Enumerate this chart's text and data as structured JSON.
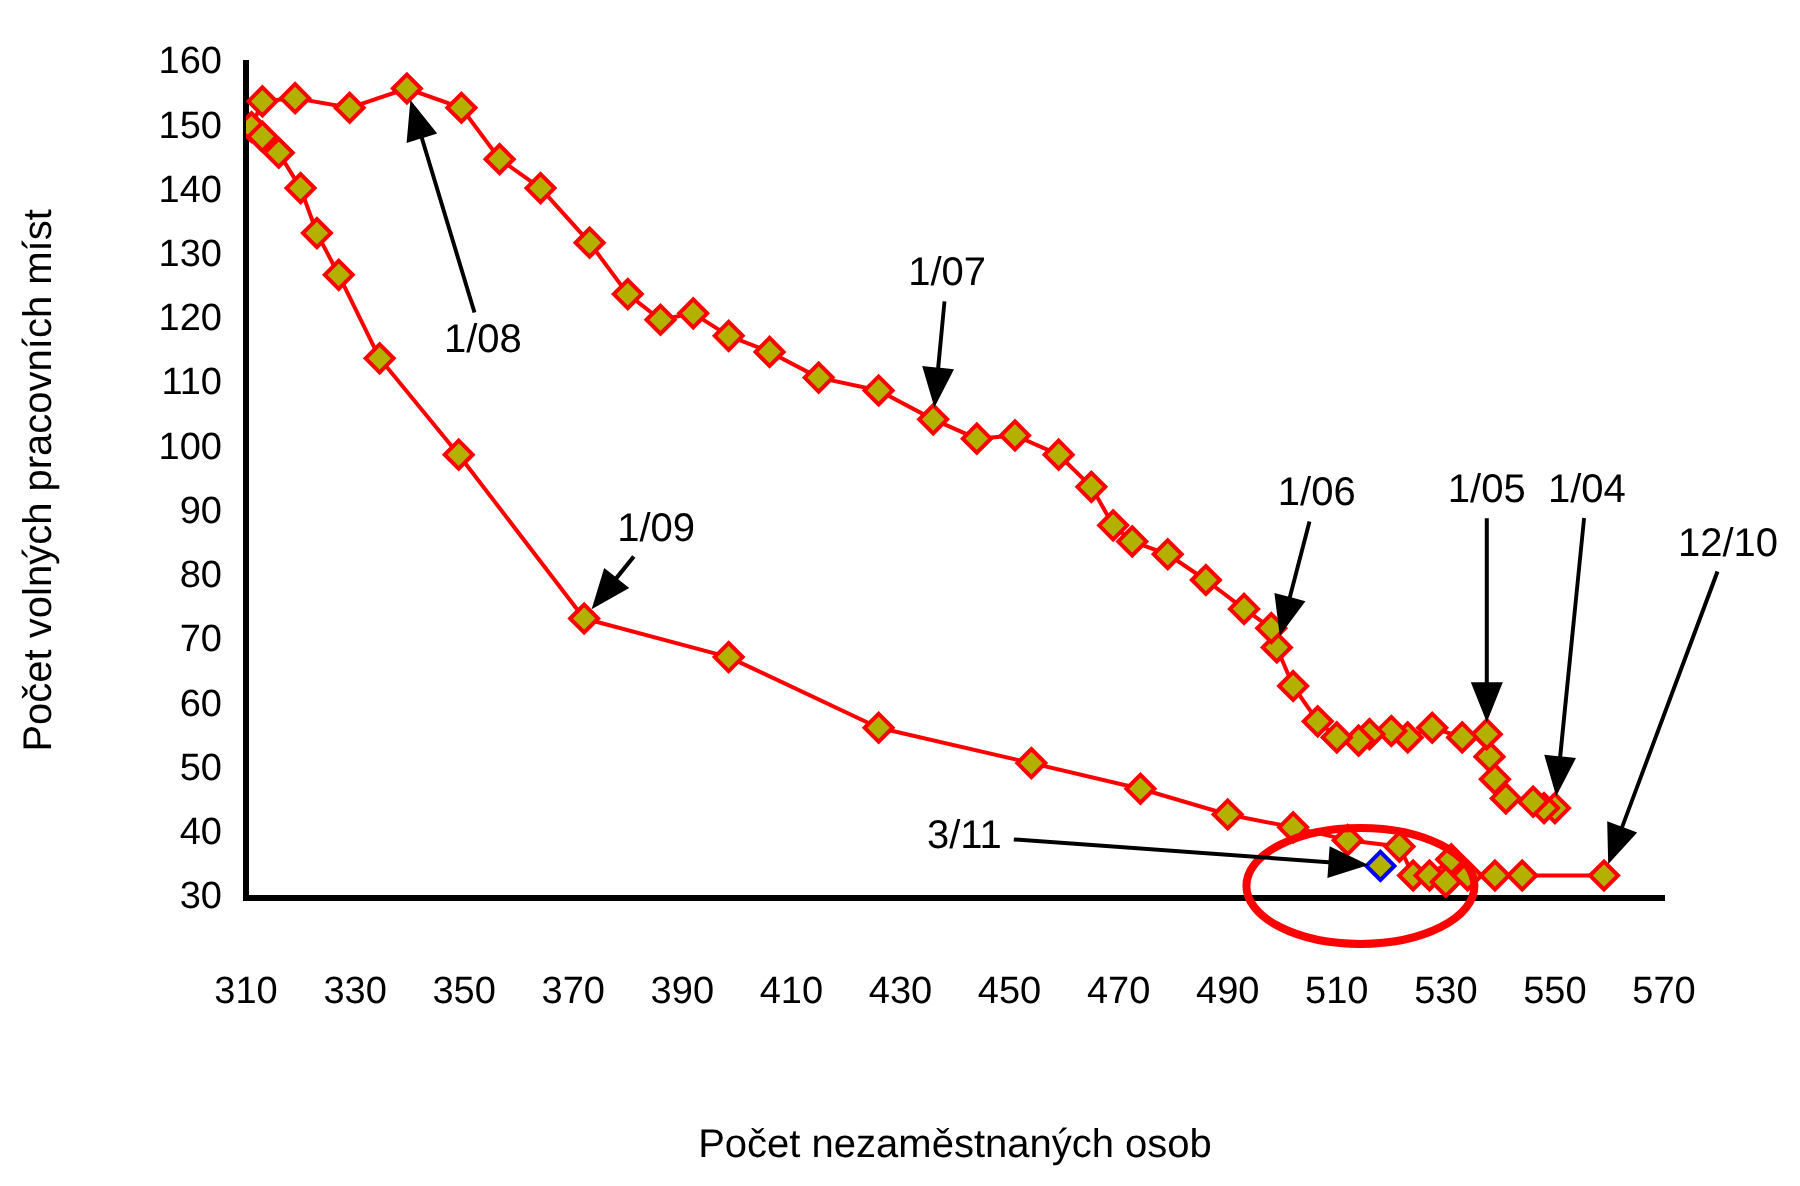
{
  "chart_data": {
    "type": "line",
    "xlabel": "Počet nezaměstnaných osob",
    "ylabel": "Počet volných pracovních míst",
    "xlim": [
      310,
      570
    ],
    "xticks": [
      310,
      330,
      350,
      370,
      390,
      410,
      430,
      450,
      470,
      490,
      510,
      530,
      550,
      570
    ],
    "ylim": [
      30,
      160
    ],
    "yticks": [
      30,
      40,
      50,
      60,
      70,
      80,
      90,
      100,
      110,
      120,
      130,
      140,
      150,
      160
    ],
    "grid": false,
    "legend": false,
    "marker": "diamond",
    "line_style": "solid",
    "series": [
      {
        "type": "line",
        "color": "#ff0000",
        "x": [
          550,
          548,
          546,
          541,
          539,
          538,
          537.5,
          533,
          527.5,
          523,
          520,
          516,
          514,
          510,
          506.5,
          502,
          499,
          498,
          493,
          486,
          479,
          472.5,
          469,
          465,
          459,
          451,
          444,
          436,
          426,
          415,
          406,
          398.5,
          392,
          386,
          380,
          373,
          364,
          356.5,
          349.5,
          339.5,
          329,
          319,
          313,
          311,
          313,
          316,
          320,
          323,
          327,
          334.5,
          349,
          372,
          398.5,
          426,
          454,
          474,
          490,
          502,
          512,
          521.5,
          524,
          527,
          531,
          530,
          534,
          539,
          544,
          559
        ],
        "values": [
          44,
          44,
          45,
          45.5,
          48.5,
          52,
          55.5,
          55,
          56.5,
          55,
          56,
          55.5,
          54.5,
          55,
          57.5,
          63,
          69,
          72,
          75,
          79.5,
          83.5,
          85.5,
          88,
          94,
          99,
          102,
          101.5,
          104.5,
          109,
          111,
          115,
          117.5,
          121,
          120,
          124,
          132,
          140.5,
          145,
          153,
          156,
          153,
          154.5,
          154,
          150,
          148.5,
          146,
          140.5,
          133.5,
          127,
          114,
          99,
          73.5,
          67.5,
          56.5,
          51,
          47,
          43,
          41,
          39,
          38,
          33.5,
          33.5,
          36,
          32.5,
          33.5,
          33.5,
          33.5,
          33.5
        ]
      },
      {
        "type": "scatter",
        "color": "#0000ff",
        "x": [
          518
        ],
        "values": [
          35
        ]
      }
    ],
    "annotations": [
      "1/08",
      "1/07",
      "1/06",
      "1/05",
      "1/04",
      "12/10",
      "1/09",
      "3/11"
    ]
  }
}
